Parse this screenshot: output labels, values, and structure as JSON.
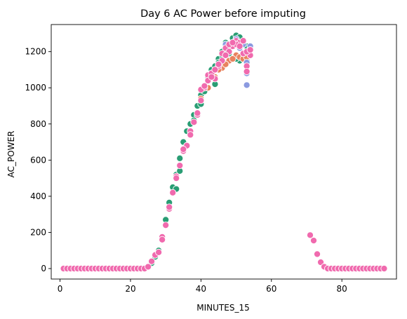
{
  "chart_data": {
    "type": "scatter",
    "title": "Day 6 AC Power before imputing",
    "xlabel": "MINUTES_15",
    "ylabel": "AC_POWER",
    "xlim": [
      -2.5,
      95.5
    ],
    "ylim": [
      -58,
      1350
    ],
    "xticks": [
      0,
      20,
      40,
      60,
      80
    ],
    "yticks": [
      0,
      200,
      400,
      600,
      800,
      1000,
      1200
    ],
    "grid": false,
    "legend": "none",
    "marker_edge_color": "#ffffff",
    "series": [
      {
        "color": "#2a9d74",
        "points": [
          [
            26,
            30
          ],
          [
            27,
            65
          ],
          [
            28,
            100
          ],
          [
            29,
            170
          ],
          [
            30,
            270
          ],
          [
            31,
            365
          ],
          [
            32,
            450
          ],
          [
            33,
            520
          ],
          [
            34,
            610
          ],
          [
            35,
            700
          ],
          [
            36,
            760
          ],
          [
            37,
            800
          ],
          [
            38,
            850
          ],
          [
            39,
            900
          ],
          [
            40,
            960
          ],
          [
            41,
            1000
          ],
          [
            42,
            1050
          ],
          [
            43,
            1100
          ],
          [
            44,
            1120
          ],
          [
            45,
            1160
          ],
          [
            46,
            1200
          ],
          [
            47,
            1250
          ],
          [
            48,
            1230
          ],
          [
            49,
            1275
          ],
          [
            50,
            1290
          ],
          [
            51,
            1280
          ],
          [
            52,
            1250
          ],
          [
            53,
            1230
          ],
          [
            54,
            1220
          ],
          [
            41,
            980
          ],
          [
            43,
            1080
          ],
          [
            45,
            1140
          ],
          [
            47,
            1200
          ],
          [
            49,
            1240
          ],
          [
            51,
            1150
          ],
          [
            52,
            1160
          ],
          [
            53,
            1150
          ],
          [
            42,
            1060
          ],
          [
            44,
            1020
          ],
          [
            46,
            1180
          ],
          [
            48,
            1190
          ],
          [
            50,
            1160
          ],
          [
            34,
            540
          ],
          [
            36,
            680
          ],
          [
            38,
            820
          ],
          [
            40,
            910
          ],
          [
            33,
            440
          ]
        ]
      },
      {
        "color": "#e8825e",
        "points": [
          [
            40,
            940
          ],
          [
            42,
            1000
          ],
          [
            44,
            1060
          ],
          [
            46,
            1110
          ],
          [
            48,
            1150
          ],
          [
            50,
            1180
          ],
          [
            51,
            1170
          ],
          [
            52,
            1160
          ],
          [
            53,
            1170
          ],
          [
            45,
            1100
          ],
          [
            47,
            1130
          ],
          [
            49,
            1160
          ]
        ]
      },
      {
        "color": "#8b9ae0",
        "points": [
          [
            47,
            1240
          ],
          [
            49,
            1250
          ],
          [
            50,
            1270
          ],
          [
            51,
            1250
          ],
          [
            52,
            1240
          ],
          [
            53,
            1015
          ],
          [
            53,
            1080
          ],
          [
            54,
            1230
          ],
          [
            53,
            1140
          ],
          [
            51,
            1220
          ]
        ]
      },
      {
        "color": "#f06aae",
        "points": [
          [
            1,
            0
          ],
          [
            2,
            0
          ],
          [
            3,
            0
          ],
          [
            4,
            0
          ],
          [
            5,
            0
          ],
          [
            6,
            0
          ],
          [
            7,
            0
          ],
          [
            8,
            0
          ],
          [
            9,
            0
          ],
          [
            10,
            0
          ],
          [
            11,
            0
          ],
          [
            12,
            0
          ],
          [
            13,
            0
          ],
          [
            14,
            0
          ],
          [
            15,
            0
          ],
          [
            16,
            0
          ],
          [
            17,
            0
          ],
          [
            18,
            0
          ],
          [
            19,
            0
          ],
          [
            20,
            0
          ],
          [
            21,
            0
          ],
          [
            22,
            0
          ],
          [
            23,
            0
          ],
          [
            24,
            0
          ],
          [
            25,
            10
          ],
          [
            26,
            40
          ],
          [
            27,
            75
          ],
          [
            28,
            90
          ],
          [
            29,
            175
          ],
          [
            30,
            240
          ],
          [
            31,
            330
          ],
          [
            32,
            420
          ],
          [
            33,
            510
          ],
          [
            34,
            570
          ],
          [
            35,
            650
          ],
          [
            36,
            680
          ],
          [
            37,
            760
          ],
          [
            38,
            810
          ],
          [
            39,
            850
          ],
          [
            40,
            930
          ],
          [
            41,
            1000
          ],
          [
            42,
            1070
          ],
          [
            43,
            1080
          ],
          [
            44,
            1050
          ],
          [
            45,
            1120
          ],
          [
            46,
            1190
          ],
          [
            47,
            1220
          ],
          [
            48,
            1200
          ],
          [
            49,
            1230
          ],
          [
            50,
            1260
          ],
          [
            51,
            1250
          ],
          [
            52,
            1260
          ],
          [
            53,
            1120
          ],
          [
            54,
            1180
          ],
          [
            71,
            185
          ],
          [
            72,
            155
          ],
          [
            73,
            80
          ],
          [
            74,
            35
          ],
          [
            75,
            10
          ],
          [
            76,
            0
          ],
          [
            77,
            0
          ],
          [
            78,
            0
          ],
          [
            79,
            0
          ],
          [
            80,
            0
          ],
          [
            81,
            0
          ],
          [
            82,
            0
          ],
          [
            83,
            0
          ],
          [
            84,
            0
          ],
          [
            85,
            0
          ],
          [
            86,
            0
          ],
          [
            87,
            0
          ],
          [
            88,
            0
          ],
          [
            89,
            0
          ],
          [
            90,
            0
          ],
          [
            91,
            0
          ],
          [
            92,
            0
          ],
          [
            40,
            990
          ],
          [
            42,
            1040
          ],
          [
            44,
            1100
          ],
          [
            46,
            1150
          ],
          [
            48,
            1240
          ],
          [
            50,
            1240
          ],
          [
            52,
            1190
          ],
          [
            53,
            1200
          ],
          [
            53,
            1090
          ],
          [
            54,
            1210
          ],
          [
            51,
            1230
          ],
          [
            49,
            1250
          ],
          [
            47,
            1180
          ],
          [
            45,
            1130
          ],
          [
            43,
            1060
          ],
          [
            41,
            1010
          ],
          [
            39,
            860
          ],
          [
            37,
            740
          ],
          [
            35,
            660
          ],
          [
            33,
            500
          ],
          [
            31,
            340
          ],
          [
            29,
            160
          ]
        ]
      }
    ]
  }
}
